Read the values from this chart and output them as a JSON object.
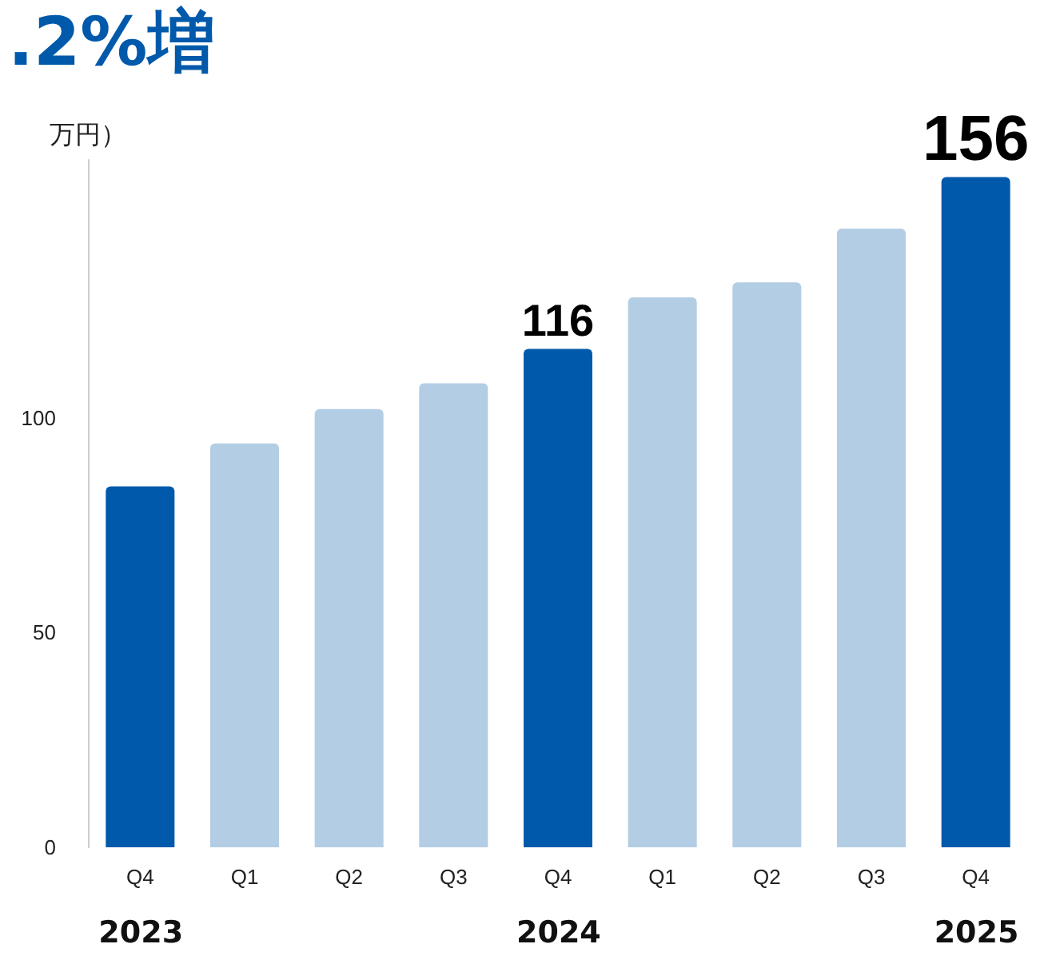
{
  "chart_data": {
    "type": "bar",
    "title": ".2%増",
    "ylabel": "万円）",
    "categories": [
      "Q4",
      "Q1",
      "Q2",
      "Q3",
      "Q4",
      "Q1",
      "Q2",
      "Q3",
      "Q4"
    ],
    "values": [
      84,
      94,
      102,
      108,
      116,
      128,
      131.5,
      144,
      156
    ],
    "colors": [
      "#0059aa",
      "#b3cde5",
      "#b3cde5",
      "#b3cde5",
      "#0059aa",
      "#b3cde5",
      "#b3cde5",
      "#b3cde5",
      "#0059aa"
    ],
    "value_labels": [
      null,
      null,
      null,
      null,
      "116",
      null,
      null,
      null,
      "156"
    ],
    "annotations": [
      "2023",
      "2024",
      "2025"
    ],
    "ylim": [
      0,
      160
    ],
    "yticks": [
      0,
      50,
      100
    ],
    "grid": false
  }
}
